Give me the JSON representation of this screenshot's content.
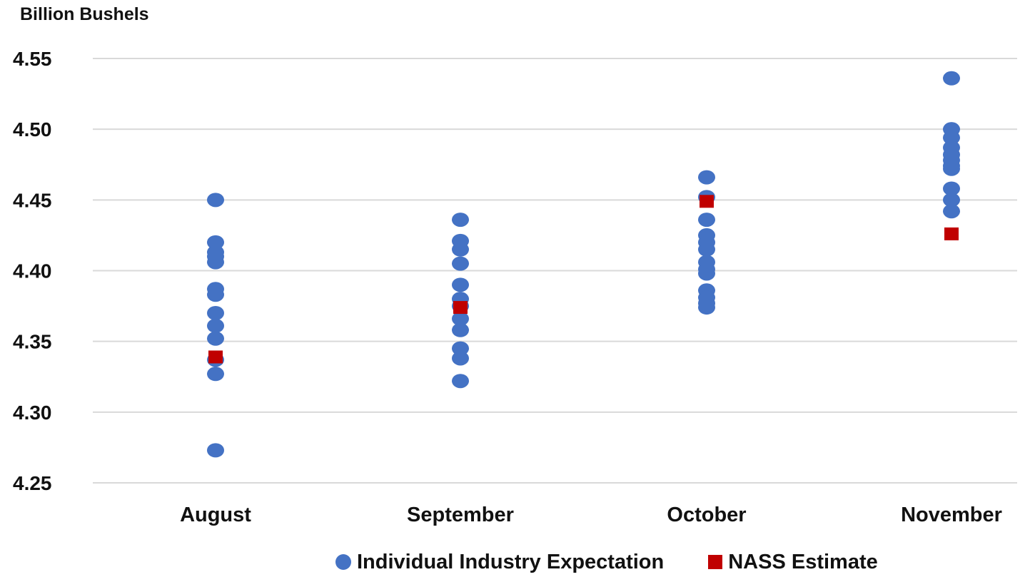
{
  "colors": {
    "expectation": "#4472c4",
    "nass": "#c00000",
    "gridline": "#d9d9d9",
    "text": "#111111"
  },
  "chart_data": {
    "type": "scatter",
    "title": "Billion Bushels",
    "xlabel": "",
    "ylabel": "",
    "categories": [
      "August",
      "September",
      "October",
      "November"
    ],
    "ylim": [
      4.25,
      4.55
    ],
    "yticks": [
      4.25,
      4.3,
      4.35,
      4.4,
      4.45,
      4.5,
      4.55
    ],
    "ytick_labels": [
      "4.25",
      "4.30",
      "4.35",
      "4.40",
      "4.45",
      "4.50",
      "4.55"
    ],
    "grid": true,
    "legend_position": "bottom",
    "series": [
      {
        "name": "Individual Industry Expectation",
        "marker": "circle",
        "values": [
          [
            4.45,
            4.42,
            4.413,
            4.41,
            4.406,
            4.387,
            4.383,
            4.37,
            4.361,
            4.352,
            4.337,
            4.327,
            4.273
          ],
          [
            4.436,
            4.421,
            4.415,
            4.405,
            4.39,
            4.38,
            4.375,
            4.366,
            4.358,
            4.345,
            4.338,
            4.322
          ],
          [
            4.466,
            4.452,
            4.436,
            4.425,
            4.42,
            4.415,
            4.406,
            4.401,
            4.398,
            4.386,
            4.381,
            4.377,
            4.374
          ],
          [
            4.536,
            4.5,
            4.494,
            4.487,
            4.482,
            4.478,
            4.474,
            4.472,
            4.458,
            4.45,
            4.442
          ]
        ]
      },
      {
        "name": "NASS Estimate",
        "marker": "square",
        "values": [
          4.339,
          4.374,
          4.449,
          4.426
        ]
      }
    ]
  }
}
